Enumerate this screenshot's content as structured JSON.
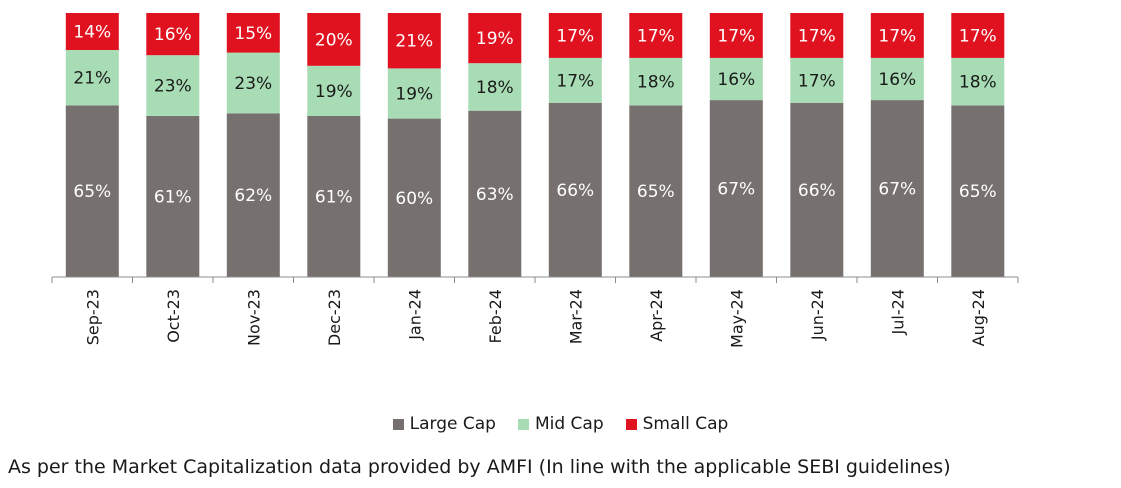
{
  "chart_data": {
    "type": "bar",
    "stacked": true,
    "categories": [
      "Sep-23",
      "Oct-23",
      "Nov-23",
      "Dec-23",
      "Jan-24",
      "Feb-24",
      "Mar-24",
      "Apr-24",
      "May-24",
      "Jun-24",
      "Jul-24",
      "Aug-24"
    ],
    "series": [
      {
        "name": "Large Cap",
        "color": "#76716e",
        "values": [
          65,
          61,
          62,
          61,
          60,
          63,
          66,
          65,
          67,
          66,
          67,
          65
        ]
      },
      {
        "name": "Mid Cap",
        "color": "#a8dcb4",
        "values": [
          21,
          23,
          23,
          19,
          19,
          18,
          17,
          18,
          16,
          17,
          16,
          18
        ]
      },
      {
        "name": "Small Cap",
        "color": "#e0121f",
        "values": [
          14,
          16,
          15,
          20,
          21,
          19,
          17,
          17,
          17,
          17,
          17,
          17
        ]
      }
    ],
    "value_suffix": "%",
    "ylim": [
      0,
      100
    ],
    "grid": false,
    "legend_position": "bottom"
  },
  "legend": {
    "items": [
      {
        "label": "Large Cap",
        "color": "#76716e"
      },
      {
        "label": "Mid Cap",
        "color": "#a8dcb4"
      },
      {
        "label": "Small Cap",
        "color": "#e0121f"
      }
    ]
  },
  "footnote": "As per the Market Capitalization data provided by AMFI (In line with the applicable SEBI guidelines)"
}
